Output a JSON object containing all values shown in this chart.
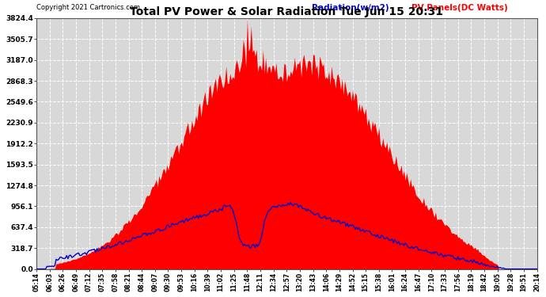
{
  "title": "Total PV Power & Solar Radiation Tue Jun 15 20:31",
  "copyright": "Copyright 2021 Cartronics.com",
  "legend_radiation": "Radiation(w/m2)",
  "legend_pv": "PV Panels(DC Watts)",
  "ymax": 3824.4,
  "yticks": [
    0.0,
    318.7,
    637.4,
    956.1,
    1274.8,
    1593.5,
    1912.2,
    2230.9,
    2549.6,
    2868.3,
    3187.0,
    3505.7,
    3824.4
  ],
  "ytick_labels": [
    "0.0",
    "318.7",
    "637.4",
    "956.1",
    "1274.8",
    "1593.5",
    "1912.2",
    "2230.9",
    "2549.6",
    "2868.3",
    "3187.0",
    "3505.7",
    "3824.4"
  ],
  "background_color": "#ffffff",
  "plot_bg_color": "#d8d8d8",
  "grid_color": "#ffffff",
  "bar_color": "#ff0000",
  "line_color": "#0000cc",
  "title_color": "#000000",
  "copyright_color": "#000000",
  "radiation_label_color": "#0000cc",
  "pv_label_color": "#ff0000",
  "time_labels": [
    "05:14",
    "06:03",
    "06:26",
    "06:49",
    "07:12",
    "07:35",
    "07:58",
    "08:21",
    "08:44",
    "09:07",
    "09:30",
    "09:53",
    "10:16",
    "10:39",
    "11:02",
    "11:25",
    "11:48",
    "12:11",
    "12:34",
    "12:57",
    "13:20",
    "13:43",
    "14:06",
    "14:29",
    "14:52",
    "15:15",
    "15:38",
    "16:01",
    "16:24",
    "16:47",
    "17:10",
    "17:33",
    "17:56",
    "18:19",
    "18:42",
    "19:05",
    "19:28",
    "19:51",
    "20:14"
  ]
}
